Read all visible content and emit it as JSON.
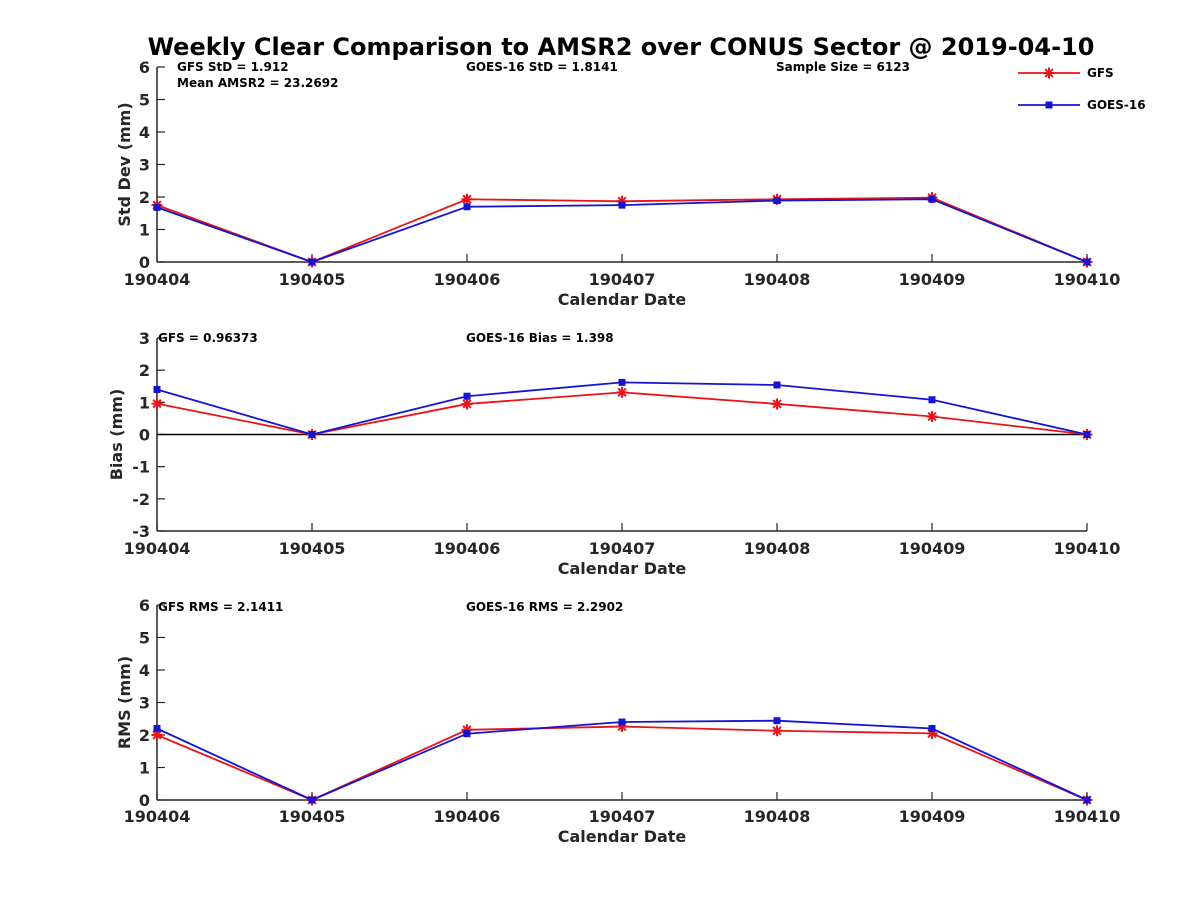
{
  "chart_data": [
    {
      "type": "line",
      "title": "Weekly Clear Comparison to AMSR2 over CONUS Sector @ 2019-04-10",
      "xlabel": "Calendar Date",
      "ylabel": "Std Dev (mm)",
      "categories": [
        "190404",
        "190405",
        "190406",
        "190407",
        "190408",
        "190409",
        "190410"
      ],
      "ylim": [
        0,
        6
      ],
      "yticks": [
        "0",
        "1",
        "2",
        "3",
        "4",
        "5",
        "6"
      ],
      "grid": false,
      "legend_position": "top-right",
      "annotations": [
        "GFS StD = 1.912",
        "Mean AMSR2 = 23.2692",
        "GOES-16 StD = 1.8141",
        "Sample Size = 6123"
      ],
      "series": [
        {
          "name": "GFS",
          "color": "#e8141a",
          "marker": "asterisk",
          "values": [
            1.75,
            0,
            1.93,
            1.87,
            1.93,
            1.98,
            0
          ]
        },
        {
          "name": "GOES-16",
          "color": "#1414d2",
          "marker": "square",
          "values": [
            1.68,
            0,
            1.7,
            1.75,
            1.89,
            1.93,
            0
          ]
        }
      ]
    },
    {
      "type": "line",
      "xlabel": "Calendar Date",
      "ylabel": "Bias (mm)",
      "categories": [
        "190404",
        "190405",
        "190406",
        "190407",
        "190408",
        "190409",
        "190410"
      ],
      "ylim": [
        -3,
        3
      ],
      "yticks": [
        "-3",
        "-2",
        "-1",
        "0",
        "1",
        "2",
        "3"
      ],
      "zero_line": true,
      "grid": false,
      "annotations": [
        "GFS = 0.96373",
        "GOES-16 Bias  = 1.398"
      ],
      "series": [
        {
          "name": "GFS",
          "color": "#e8141a",
          "marker": "asterisk",
          "values": [
            0.96,
            0,
            0.95,
            1.31,
            0.95,
            0.56,
            0
          ]
        },
        {
          "name": "GOES-16",
          "color": "#1414d2",
          "marker": "square",
          "values": [
            1.4,
            0,
            1.19,
            1.62,
            1.54,
            1.08,
            0
          ]
        }
      ]
    },
    {
      "type": "line",
      "xlabel": "Calendar Date",
      "ylabel": "RMS (mm)",
      "categories": [
        "190404",
        "190405",
        "190406",
        "190407",
        "190408",
        "190409",
        "190410"
      ],
      "ylim": [
        0,
        6
      ],
      "yticks": [
        "0",
        "1",
        "2",
        "3",
        "4",
        "5",
        "6"
      ],
      "grid": false,
      "annotations": [
        "GFS RMS = 2.1411",
        "GOES-16 RMS = 2.2902"
      ],
      "series": [
        {
          "name": "GFS",
          "color": "#e8141a",
          "marker": "asterisk",
          "values": [
            2.0,
            0,
            2.16,
            2.26,
            2.13,
            2.05,
            0
          ]
        },
        {
          "name": "GOES-16",
          "color": "#1414d2",
          "marker": "square",
          "values": [
            2.2,
            0,
            2.04,
            2.4,
            2.44,
            2.2,
            0
          ]
        }
      ]
    }
  ]
}
